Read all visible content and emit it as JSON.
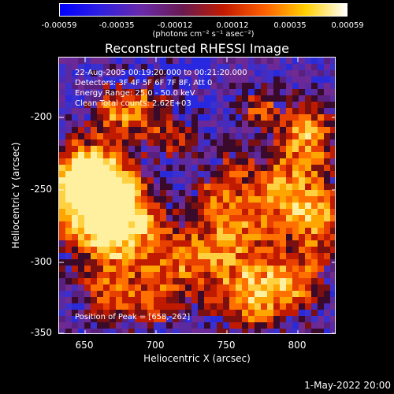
{
  "colorbar": {
    "ticks": [
      "-0.00059",
      "-0.00035",
      "-0.00012",
      "0.00012",
      "0.00035",
      "0.00059"
    ],
    "unit": "(photons cm⁻² s⁻¹ asec⁻²)",
    "colors": [
      "#0000ff",
      "#3020e0",
      "#6a2aa8",
      "#6a1a50",
      "#c21a00",
      "#ff6000",
      "#ffd000",
      "#ffffff"
    ]
  },
  "plot": {
    "title": "Reconstructed RHESSI Image",
    "annotations": [
      "22-Aug-2005 00:19:20.000 to 00:21:20.000",
      "Detectors: 3F 4F 5F 6F 7F 8F, Att 0",
      "Energy Range: 25.0 - 50.0 keV",
      "Clean     Total counts: 2.62E+03"
    ],
    "peak_label": "Position of Peak = [658,-262]",
    "xlabel": "Heliocentric X (arcsec)",
    "ylabel": "Heliocentric Y (arcsec)",
    "xticks": [
      "650",
      "700",
      "750",
      "800"
    ],
    "yticks": [
      "-200",
      "-250",
      "-300",
      "-350"
    ],
    "xlim": [
      632,
      828
    ],
    "ylim": [
      -352,
      -156
    ]
  },
  "timestamp": "1-May-2022 20:00"
}
